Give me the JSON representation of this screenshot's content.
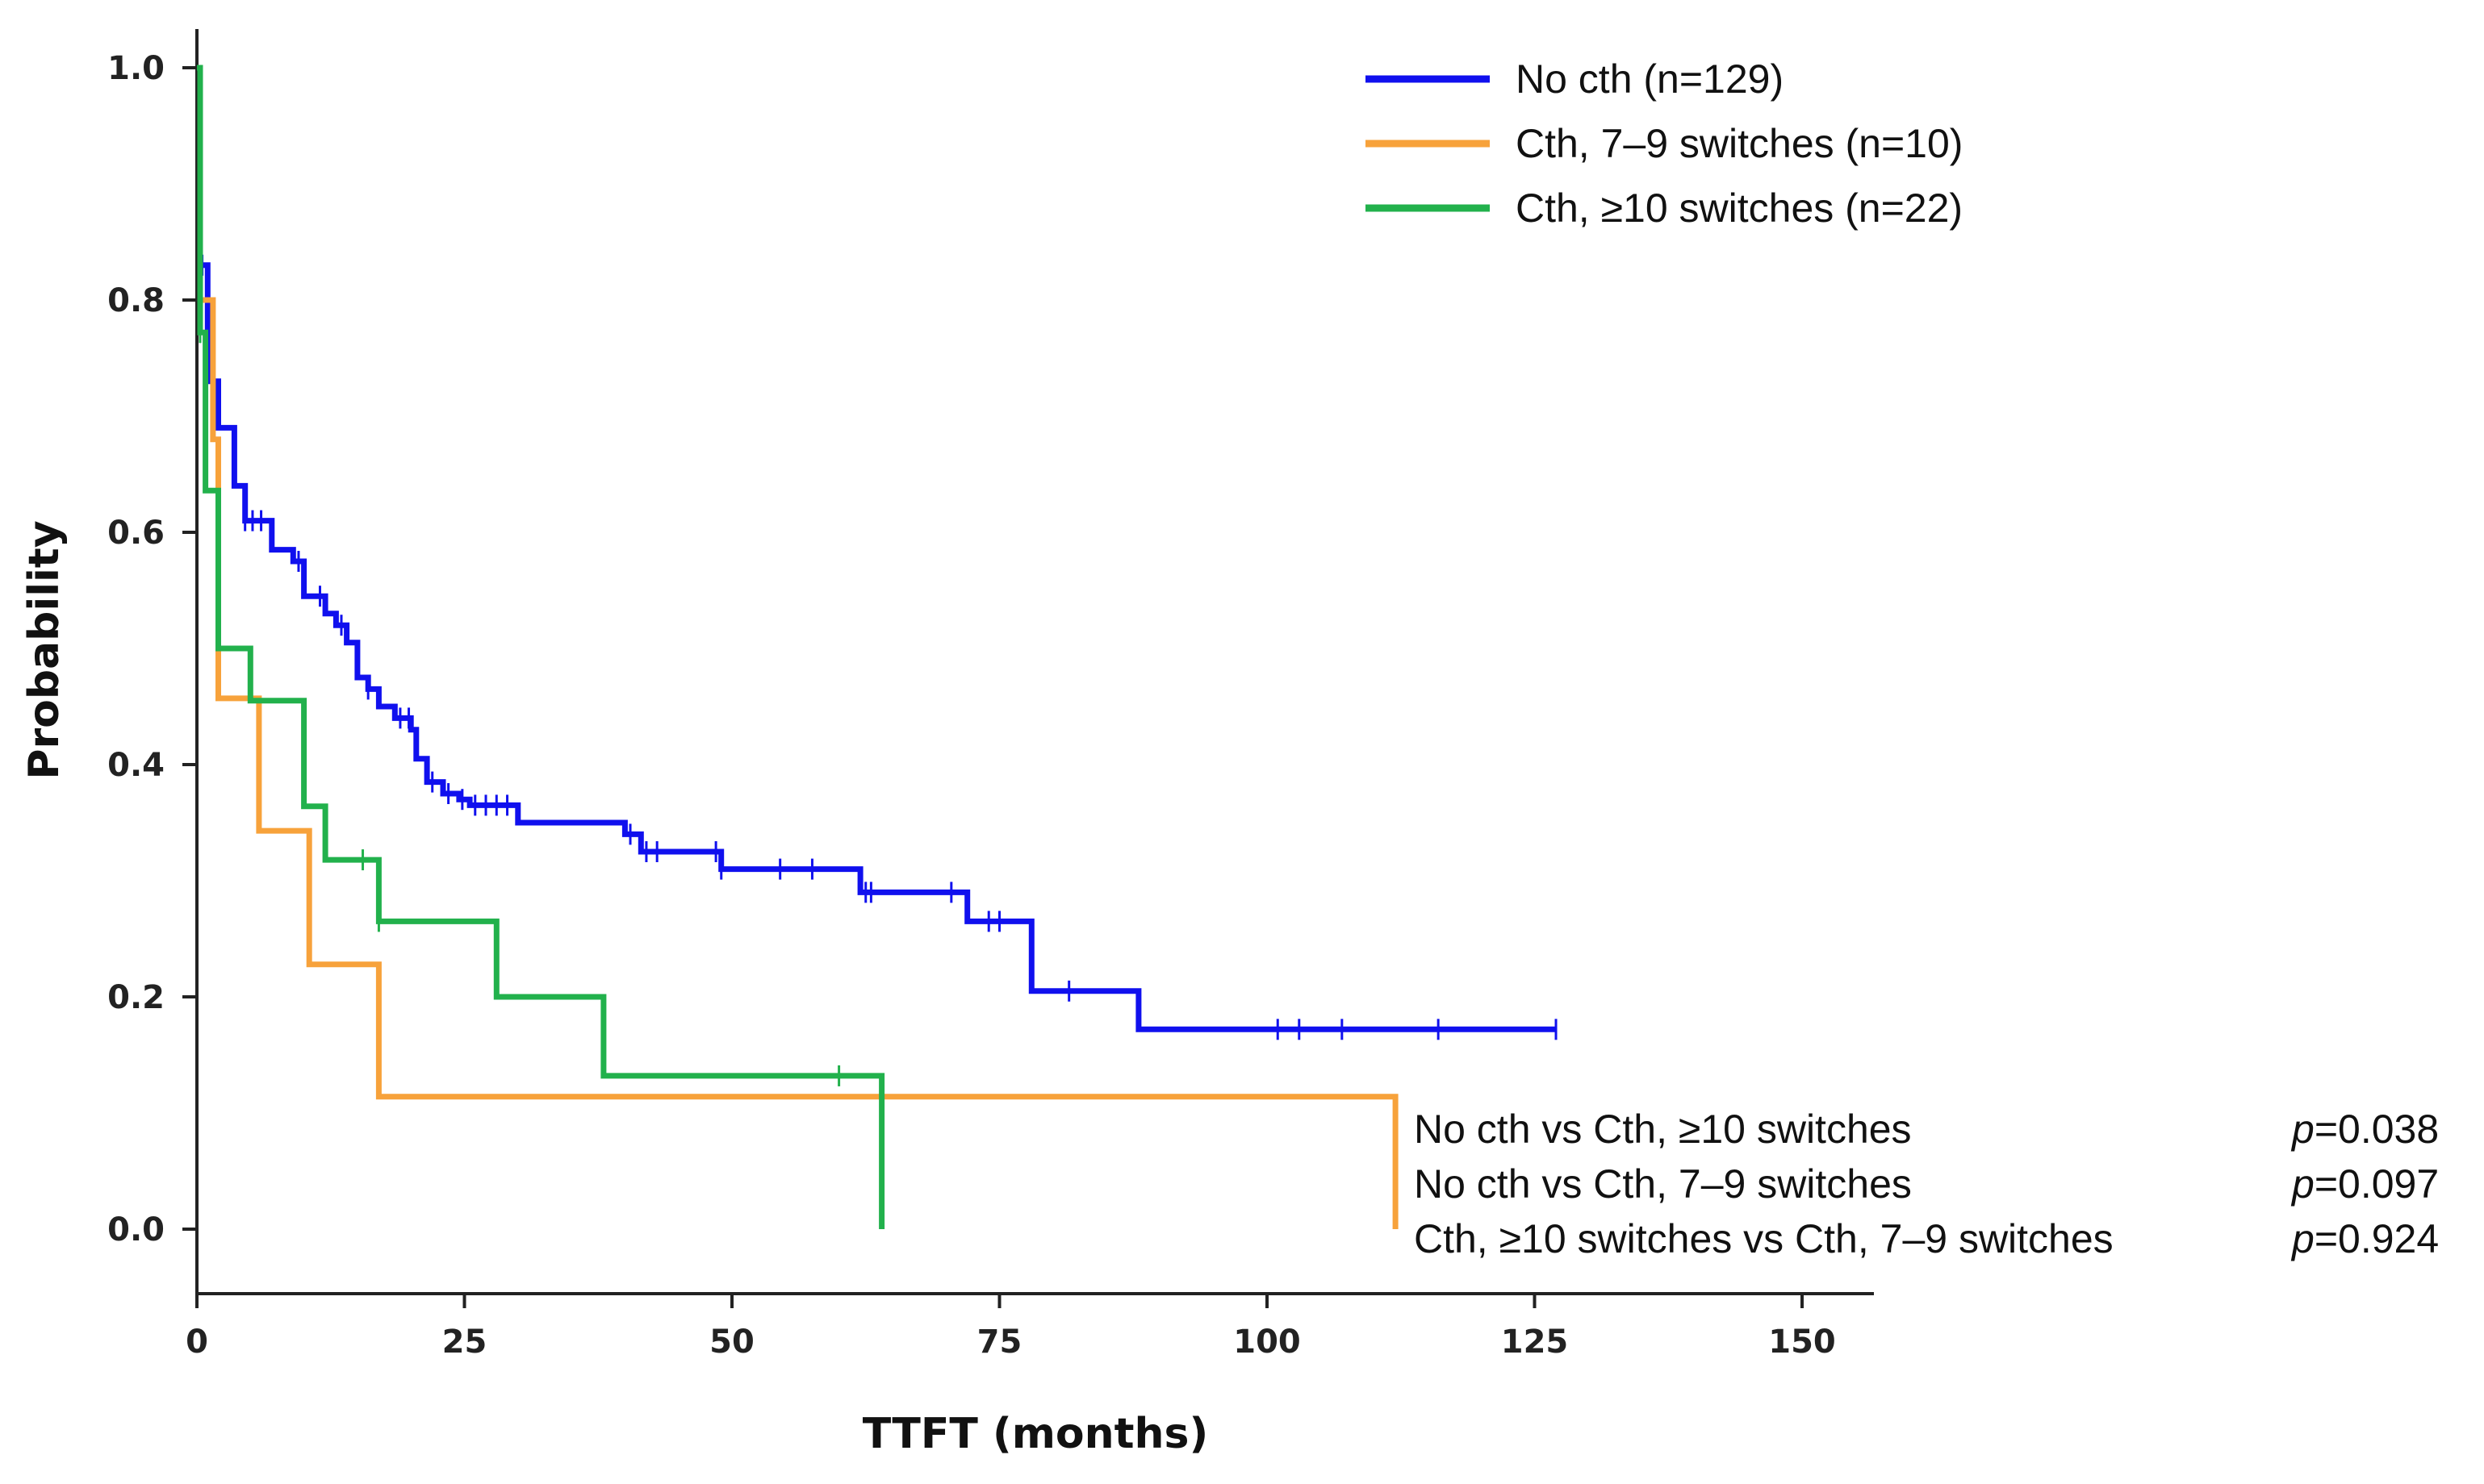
{
  "chart_data": {
    "type": "line",
    "subtype": "kaplan-meier step",
    "xlabel": "TTFT (months)",
    "ylabel": "Probability",
    "xlim": [
      0,
      155
    ],
    "ylim": [
      -0.06,
      1.02
    ],
    "xticks": [
      0,
      25,
      50,
      75,
      100,
      125,
      150
    ],
    "xtick_labels": [
      "0",
      "25",
      "50",
      "75",
      "100",
      "125",
      "150"
    ],
    "yticks": [
      0.0,
      0.2,
      0.4,
      0.6,
      0.8,
      1.0
    ],
    "ytick_labels": [
      "0.0",
      "0.2",
      "0.4",
      "0.6",
      "0.8",
      "1.0"
    ],
    "grid": false,
    "legend_position": "top-right",
    "series": [
      {
        "name": "No cth (n=129)",
        "color": "#1010ee",
        "points": [
          [
            0,
            1.0
          ],
          [
            0.3,
            0.83
          ],
          [
            1,
            0.73
          ],
          [
            2,
            0.69
          ],
          [
            3.5,
            0.64
          ],
          [
            4.5,
            0.61
          ],
          [
            7,
            0.585
          ],
          [
            9,
            0.575
          ],
          [
            10,
            0.545
          ],
          [
            12,
            0.53
          ],
          [
            13,
            0.52
          ],
          [
            14,
            0.505
          ],
          [
            15,
            0.475
          ],
          [
            16,
            0.465
          ],
          [
            17,
            0.45
          ],
          [
            18.5,
            0.44
          ],
          [
            20,
            0.43
          ],
          [
            20.5,
            0.405
          ],
          [
            21.5,
            0.385
          ],
          [
            23,
            0.375
          ],
          [
            24.5,
            0.37
          ],
          [
            25.5,
            0.365
          ],
          [
            30,
            0.35
          ],
          [
            40,
            0.34
          ],
          [
            41.5,
            0.325
          ],
          [
            49,
            0.31
          ],
          [
            62,
            0.29
          ],
          [
            72,
            0.265
          ],
          [
            78,
            0.205
          ],
          [
            88,
            0.172
          ],
          [
            127,
            0.172
          ]
        ],
        "censor_times": [
          0.5,
          4.5,
          5.2,
          6,
          9.5,
          11.5,
          13.5,
          16,
          19,
          19.8,
          22,
          23.5,
          24.8,
          26,
          27,
          28,
          29,
          40.5,
          42,
          43,
          48.5,
          49,
          54.5,
          57.5,
          62.5,
          63,
          70.5,
          74,
          75,
          81.5,
          101,
          103,
          107,
          116,
          127
        ]
      },
      {
        "name": "Cth, 7–9 switches (n=10)",
        "color": "#f7a23b",
        "points": [
          [
            0,
            1.0
          ],
          [
            0.3,
            0.8
          ],
          [
            1.5,
            0.68
          ],
          [
            2,
            0.457
          ],
          [
            5.8,
            0.343
          ],
          [
            10.5,
            0.228
          ],
          [
            17,
            0.114
          ],
          [
            112,
            0.114
          ],
          [
            112,
            0.0
          ]
        ],
        "censor_times": []
      },
      {
        "name": "Cth, ≥10 switches (n=22)",
        "color": "#22b14c",
        "points": [
          [
            0,
            1.0
          ],
          [
            0.3,
            0.772
          ],
          [
            0.8,
            0.636
          ],
          [
            2,
            0.5
          ],
          [
            5,
            0.455
          ],
          [
            10,
            0.364
          ],
          [
            12,
            0.318
          ],
          [
            17,
            0.265
          ],
          [
            28,
            0.2
          ],
          [
            38,
            0.132
          ],
          [
            64,
            0.132
          ],
          [
            64,
            0.0
          ]
        ],
        "censor_times": [
          0.3,
          15.5,
          17,
          60
        ]
      }
    ]
  },
  "pvalues": [
    {
      "comparison": "No cth vs Cth, ≥10 switches",
      "p_prefix": "p",
      "p_value": "=0.038"
    },
    {
      "comparison": "No cth vs Cth, 7–9 switches",
      "p_prefix": "p",
      "p_value": "=0.097"
    },
    {
      "comparison": "Cth, ≥10 switches vs Cth, 7–9 switches",
      "p_prefix": "p",
      "p_value": "=0.924"
    }
  ]
}
